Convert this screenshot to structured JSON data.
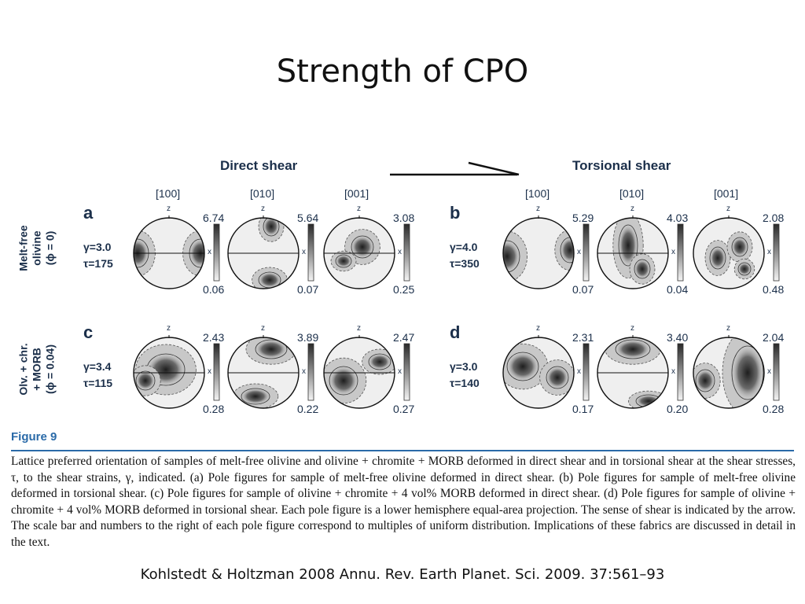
{
  "slide": {
    "title": "Strength of CPO",
    "citation": "Kohlstedt & Holtzman 2008 Annu. Rev. Earth Planet. Sci. 2009. 37:561–93"
  },
  "figure": {
    "left_header": "Direct shear",
    "right_header": "Torsional shear",
    "z_label": "z",
    "x_label": "x",
    "columns": [
      "[100]",
      "[010]",
      "[001]",
      "[100]",
      "[010]",
      "[001]"
    ],
    "row_labels": [
      [
        "Melt-free",
        "olivine",
        "(ϕ = 0)"
      ],
      [
        "Olv. + chr.",
        "+ MORB",
        "(ϕ = 0.04)"
      ]
    ],
    "panels": [
      {
        "label": "a",
        "gamma": "γ=3.0",
        "tau": "τ=175",
        "max": [
          "6.74",
          "5.64",
          "3.08"
        ],
        "min": [
          "0.06",
          "0.07",
          "0.25"
        ]
      },
      {
        "label": "b",
        "gamma": "γ=4.0",
        "tau": "τ=350",
        "max": [
          "5.29",
          "4.03",
          "2.08"
        ],
        "min": [
          "0.07",
          "0.04",
          "0.48"
        ]
      },
      {
        "label": "c",
        "gamma": "γ=3.4",
        "tau": "τ=115",
        "max": [
          "2.43",
          "3.89",
          "2.47"
        ],
        "min": [
          "0.28",
          "0.22",
          "0.27"
        ]
      },
      {
        "label": "d",
        "gamma": "γ=3.0",
        "tau": "τ=140",
        "max": [
          "2.31",
          "3.40",
          "2.04"
        ],
        "min": [
          "0.17",
          "0.20",
          "0.28"
        ]
      }
    ],
    "figure_label": "Figure 9",
    "caption": "Lattice preferred orientation of samples of melt-free olivine and olivine + chromite + MORB deformed in direct shear and in torsional shear at the shear stresses, τ, to the shear strains, γ, indicated. (a) Pole figures for sample of melt-free olivine deformed in direct shear. (b) Pole figures for sample of melt-free olivine deformed in torsional shear. (c) Pole figures for sample of olivine + chromite + 4 vol% MORB deformed in direct shear. (d) Pole figures for sample of olivine + chromite + 4 vol% MORB deformed in torsional shear. Each pole figure is a lower hemisphere equal-area projection. The sense of shear is indicated by the arrow. The scale bar and numbers to the right of each pole figure correspond to multiples of uniform distribution. Implications of these fabrics are discussed in detail in the text."
  }
}
